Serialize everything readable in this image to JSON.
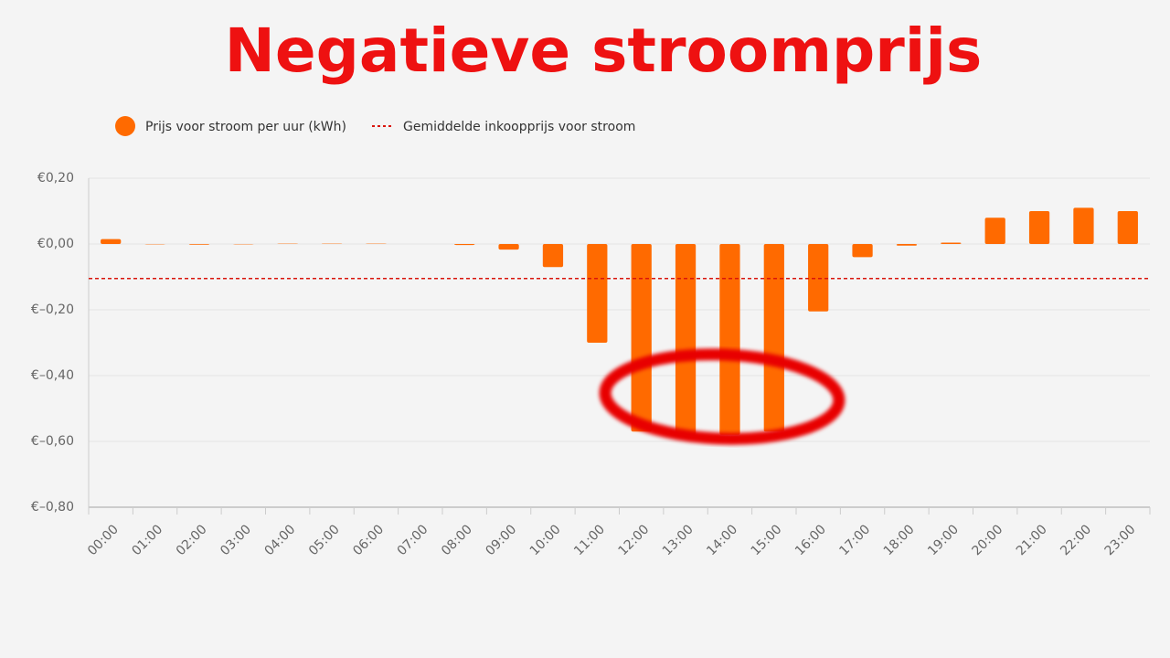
{
  "chart_data": {
    "type": "bar",
    "title": "Negatieve stroomprijs",
    "categories": [
      "00:00",
      "01:00",
      "02:00",
      "03:00",
      "04:00",
      "05:00",
      "06:00",
      "07:00",
      "08:00",
      "09:00",
      "10:00",
      "11:00",
      "12:00",
      "13:00",
      "14:00",
      "15:00",
      "16:00",
      "17:00",
      "18:00",
      "19:00",
      "20:00",
      "21:00",
      "22:00",
      "23:00"
    ],
    "series": [
      {
        "name": "Prijs voor stroom per uur (kWh)",
        "color": "#ff6a00",
        "values": [
          0.015,
          -0.001,
          -0.002,
          -0.001,
          0.001,
          0.001,
          0.001,
          0,
          -0.003,
          -0.017,
          -0.07,
          -0.3,
          -0.57,
          -0.58,
          -0.58,
          -0.57,
          -0.205,
          -0.04,
          -0.005,
          0.004,
          0.08,
          0.1,
          0.11,
          0.1
        ]
      }
    ],
    "average": {
      "name": "Gemiddelde inkoopprijs voor stroom",
      "value": -0.105,
      "color": "#d9140b"
    },
    "ylim": [
      -0.8,
      0.2
    ],
    "yticks": [
      {
        "value": 0.2,
        "label": "€0,20"
      },
      {
        "value": 0,
        "label": "€0,00"
      },
      {
        "value": -0.2,
        "label": "€–0,20"
      },
      {
        "value": -0.4,
        "label": "€–0,40"
      },
      {
        "value": -0.6,
        "label": "€–0,60"
      },
      {
        "value": -0.8,
        "label": "€–0,80"
      }
    ],
    "grid": true
  }
}
